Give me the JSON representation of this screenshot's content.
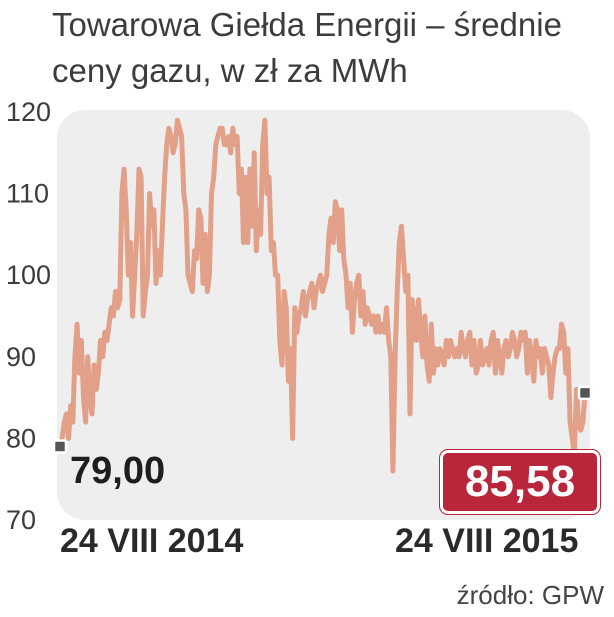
{
  "chart_data": {
    "type": "line",
    "title": "Towarowa Giełda Energii – średnie ceny gazu, w zł za MWh",
    "xlabel": "",
    "ylabel": "",
    "ylim": [
      70,
      120
    ],
    "yticks": [
      120,
      110,
      100,
      90,
      80,
      70
    ],
    "x_labels": {
      "start": "24 VIII 2014",
      "end": "24 VIII 2015"
    },
    "start_value_label": "79,00",
    "end_value_label": "85,58",
    "grid": false,
    "legend": "none",
    "colors": {
      "line": "#e2a088",
      "panel": "#eeeeee",
      "end_badge": "#b9253a",
      "markers": "#555555"
    },
    "series": [
      {
        "values": [
          79,
          80,
          82,
          83,
          80,
          84,
          82,
          90,
          94,
          88,
          92,
          85,
          82,
          90,
          85,
          83,
          89,
          86,
          88,
          92,
          90,
          93,
          92,
          94,
          96,
          95,
          98,
          96,
          97,
          110,
          113,
          108,
          100,
          104,
          95,
          100,
          105,
          113,
          112,
          95,
          98,
          100,
          110,
          106,
          108,
          99,
          103,
          100,
          106,
          112,
          116,
          118,
          117,
          115,
          116,
          119,
          118,
          117,
          110,
          108,
          100,
          99,
          98,
          103,
          102,
          108,
          107,
          99,
          105,
          98,
          100,
          110,
          112,
          116,
          117,
          118,
          118,
          116,
          116,
          117,
          115,
          118,
          116,
          117,
          110,
          113,
          104,
          112,
          104,
          113,
          106,
          115,
          103,
          108,
          105,
          116,
          119,
          110,
          112,
          103,
          104,
          100,
          100,
          92,
          89,
          98,
          96,
          87,
          91,
          80,
          96,
          93,
          95,
          96,
          98,
          95,
          97,
          98,
          99,
          96,
          98,
          99,
          100,
          98,
          99,
          100,
          105,
          107,
          104,
          109,
          108,
          103,
          108,
          102,
          100,
          96,
          99,
          93,
          97,
          99,
          100,
          95,
          98,
          94,
          96,
          95,
          94,
          95,
          93,
          95,
          93,
          94,
          93,
          96,
          92,
          90,
          76,
          90,
          98,
          104,
          106,
          102,
          98,
          100,
          83,
          97,
          95,
          92,
          97,
          93,
          90,
          95,
          89,
          87,
          94,
          88,
          91,
          89,
          91,
          90,
          89,
          92,
          90,
          92,
          91,
          90,
          91,
          90,
          93,
          91,
          90,
          92,
          93,
          89,
          92,
          88,
          89,
          92,
          89,
          90,
          91,
          89,
          92,
          93,
          88,
          92,
          90,
          88,
          91,
          92,
          90,
          91,
          93,
          92,
          90,
          91,
          93,
          92,
          93,
          88,
          92,
          90,
          87,
          92,
          90,
          91,
          88,
          91,
          90,
          89,
          85,
          88,
          90,
          91,
          91,
          94,
          93,
          88,
          91,
          82,
          80,
          78,
          86,
          82,
          81,
          82,
          85.58
        ]
      }
    ]
  },
  "source": "źródło: GPW"
}
